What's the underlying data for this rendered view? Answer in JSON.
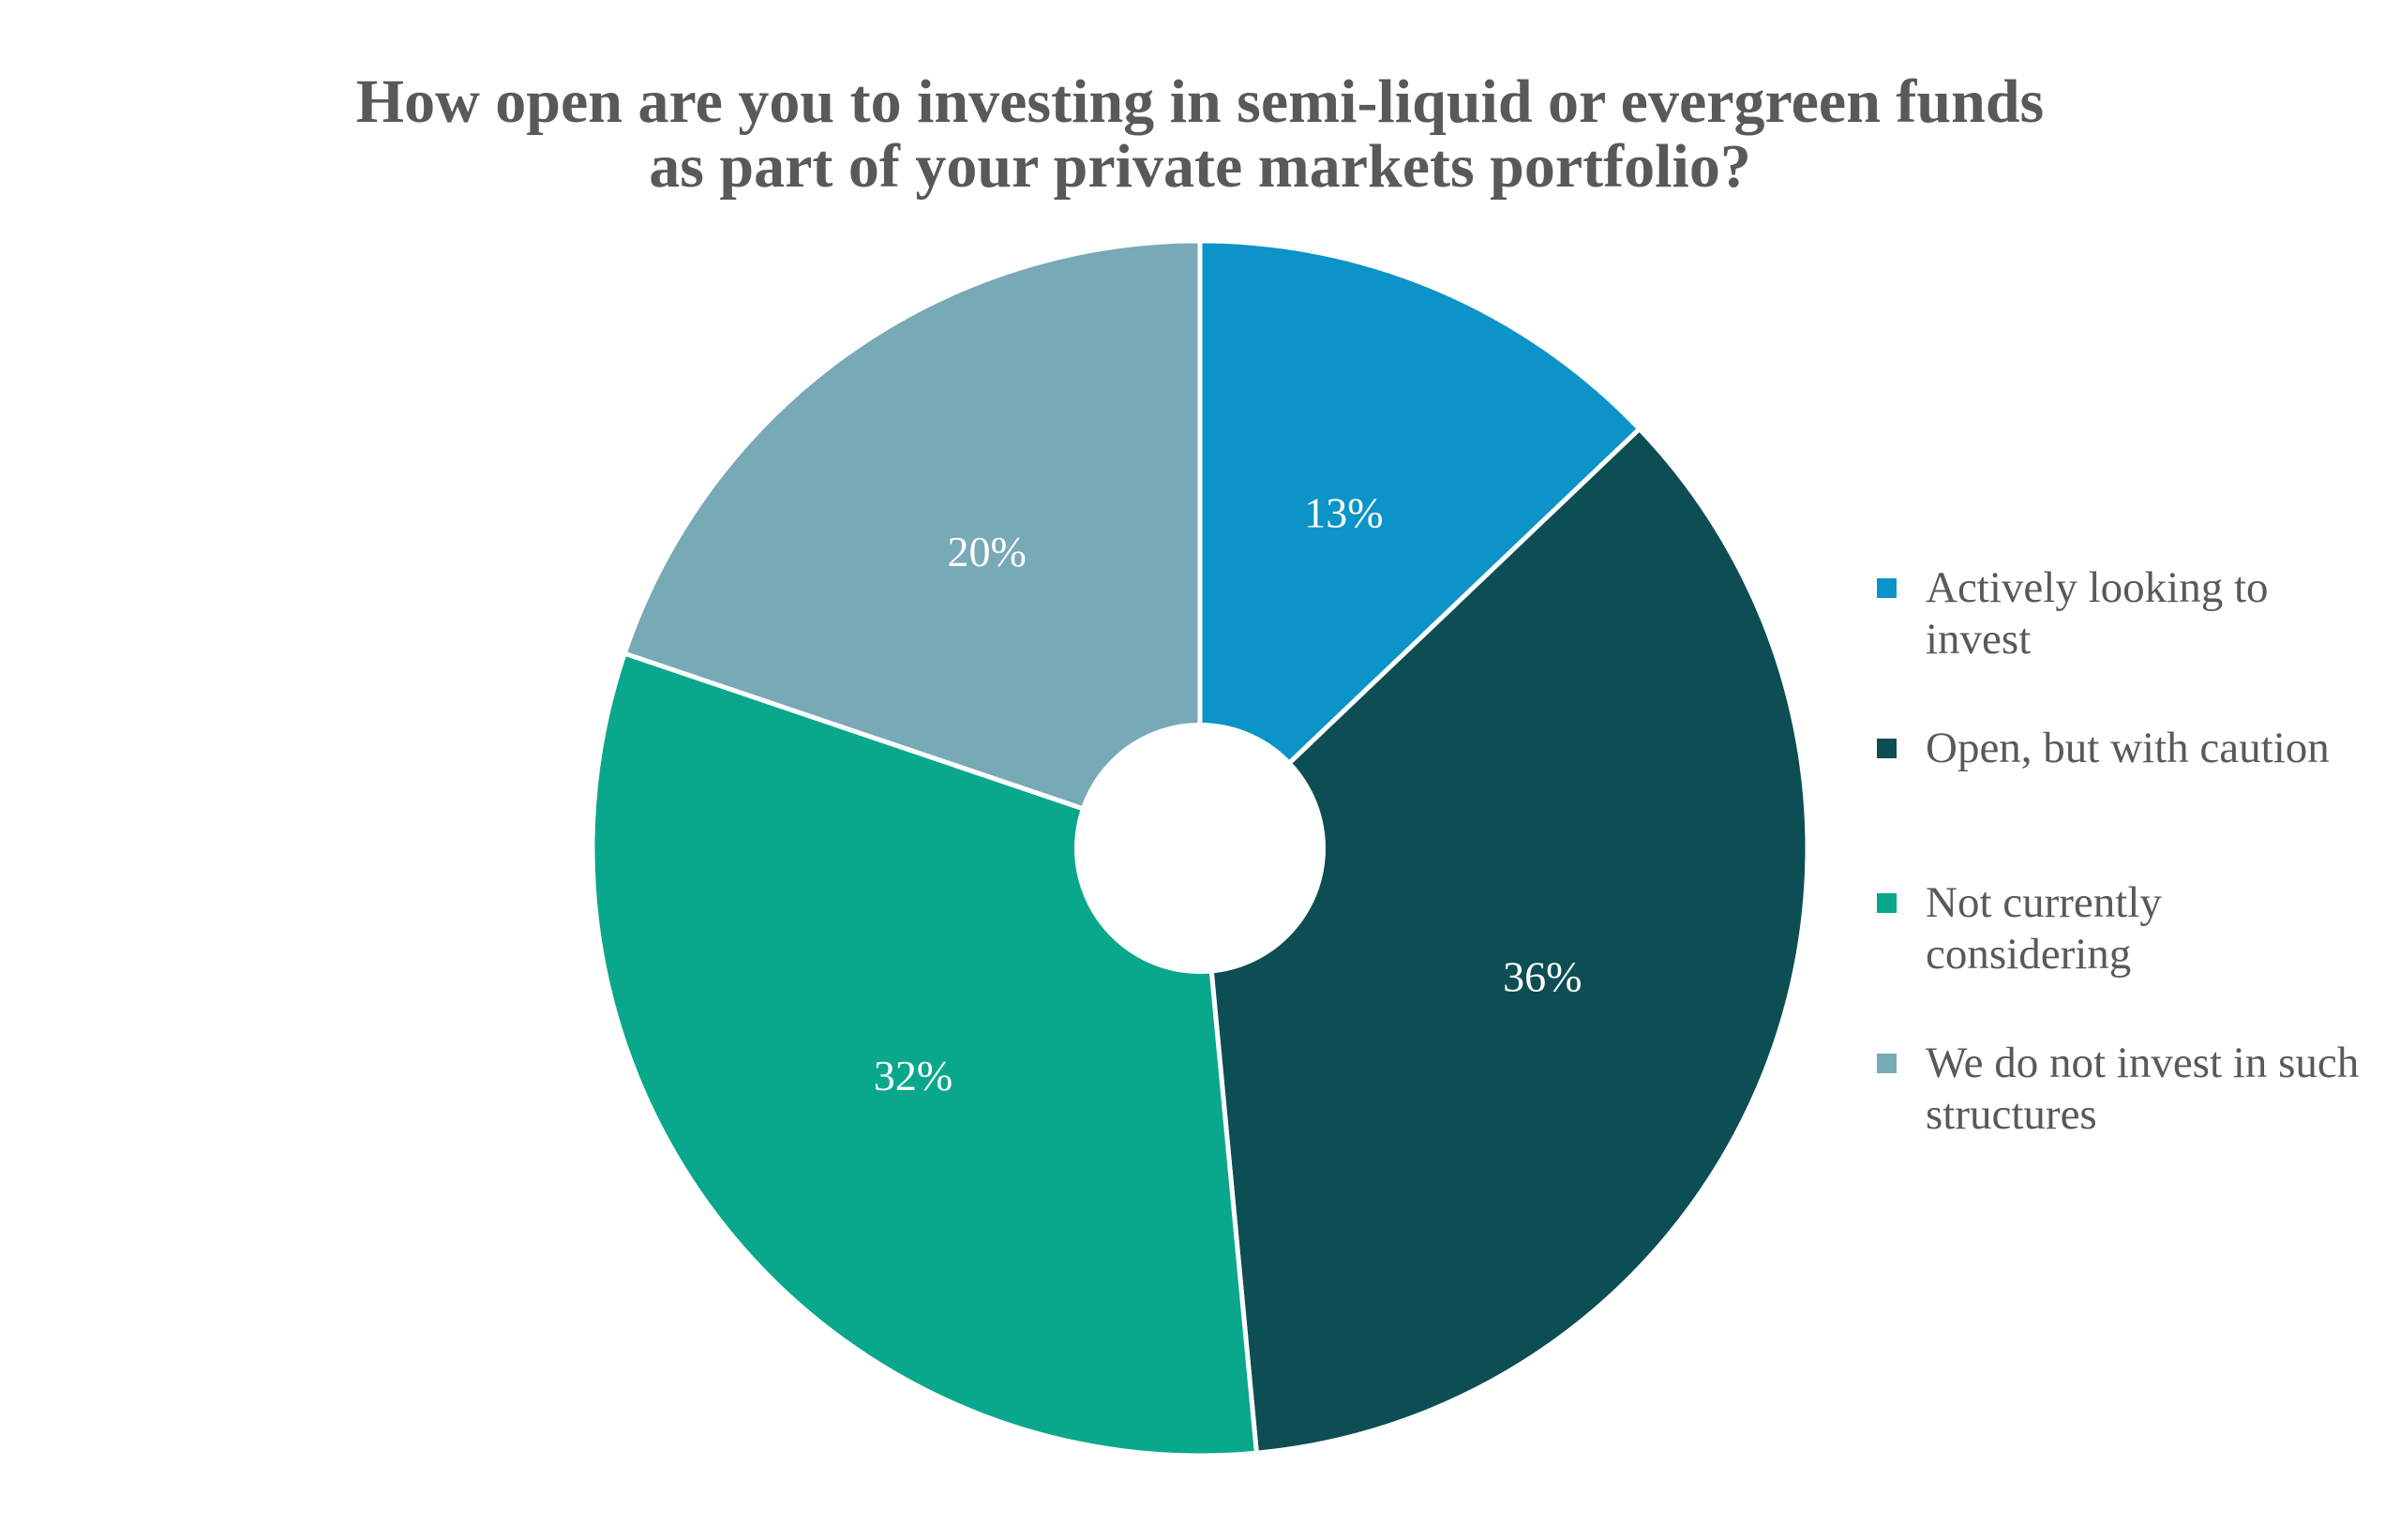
{
  "page": {
    "background": "#FFFFFF"
  },
  "title": {
    "line1": "How open are you to investing in semi-liquid or evergreen funds",
    "line2": "as part of your private markets portfolio?",
    "color": "#595959"
  },
  "chart_data": {
    "type": "pie",
    "variant": "donut",
    "title": "How open are you to investing in semi-liquid or evergreen funds as part of your private markets portfolio?",
    "categories": [
      "Actively looking to invest",
      "Open, but with caution",
      "Not currently considering",
      "We do not invest in such structures"
    ],
    "values": [
      13,
      36,
      32,
      20
    ],
    "unit": "%",
    "slice_labels": [
      "13%",
      "36%",
      "32%",
      "20%"
    ],
    "colors": [
      "#0C93C8",
      "#0D4E54",
      "#09A78C",
      "#77A9B6"
    ],
    "slice_label_color": "#FFFFFF",
    "separator_color": "#FFFFFF",
    "start_angle_deg": 0,
    "direction": "clockwise",
    "legend_position": "right"
  },
  "legend": {
    "text_color": "#595959",
    "items": [
      {
        "label": "Actively looking to invest",
        "lines": [
          "Actively looking to",
          "invest"
        ]
      },
      {
        "label": "Open, but with caution",
        "lines": [
          "Open, but with caution"
        ]
      },
      {
        "label": "Not currently considering",
        "lines": [
          "Not currently",
          "considering"
        ]
      },
      {
        "label": "We do not invest in such structures",
        "lines": [
          "We do not invest in such",
          "structures"
        ]
      }
    ]
  }
}
